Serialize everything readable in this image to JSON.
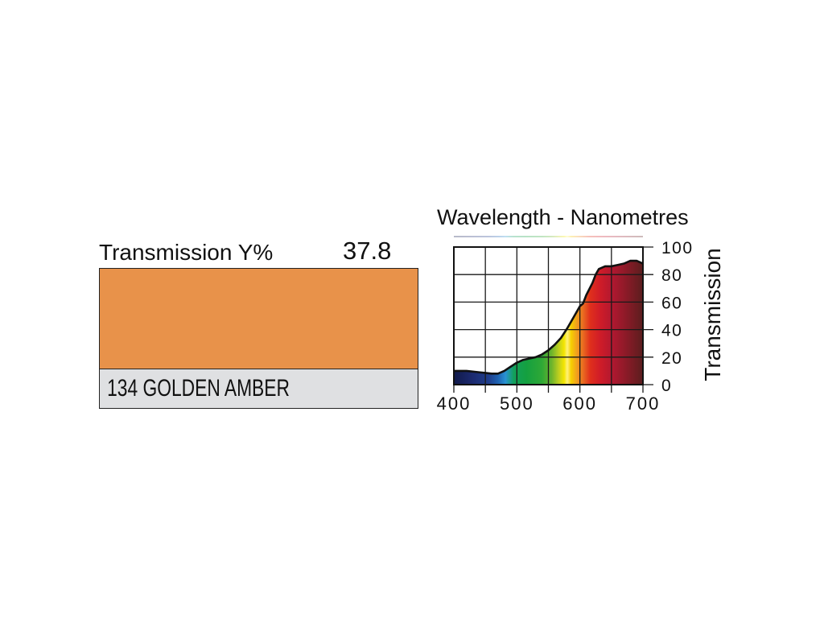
{
  "swatch": {
    "transmission_label": "Transmission Y%",
    "transmission_value": "37.8",
    "name": "134 GOLDEN AMBER",
    "color": "#E8924A",
    "name_background": "#DFE0E2"
  },
  "chart_data": {
    "type": "area",
    "xlabel": "Wavelength - Nanometres",
    "ylabel": "Transmission",
    "xlim": [
      400,
      700
    ],
    "ylim": [
      0,
      100
    ],
    "x_ticks": [
      400,
      500,
      600,
      700
    ],
    "y_ticks": [
      0,
      20,
      40,
      60,
      80,
      100
    ],
    "x_grid_step": 50,
    "grid": true,
    "y_axis_side": "right",
    "x": [
      400,
      410,
      420,
      430,
      440,
      450,
      460,
      470,
      480,
      490,
      500,
      510,
      520,
      530,
      540,
      550,
      560,
      570,
      580,
      590,
      600,
      605,
      610,
      620,
      625,
      630,
      640,
      650,
      660,
      670,
      680,
      690,
      700
    ],
    "series": [
      {
        "values": [
          10,
          10,
          10,
          9.5,
          9,
          8.5,
          8,
          8,
          10,
          13,
          16,
          18,
          19,
          20,
          22,
          25,
          29,
          34,
          41,
          49,
          57,
          59,
          65,
          74,
          80,
          84,
          86,
          86,
          87,
          88,
          90,
          90,
          88
        ]
      }
    ],
    "fill_gradient": [
      {
        "nm": 400,
        "color": "#111a4a"
      },
      {
        "nm": 430,
        "color": "#1c2a70"
      },
      {
        "nm": 455,
        "color": "#1f3d8c"
      },
      {
        "nm": 470,
        "color": "#1e62b2"
      },
      {
        "nm": 482,
        "color": "#2a92d2"
      },
      {
        "nm": 495,
        "color": "#12a05a"
      },
      {
        "nm": 515,
        "color": "#14a040"
      },
      {
        "nm": 540,
        "color": "#2fa836"
      },
      {
        "nm": 555,
        "color": "#6cb42c"
      },
      {
        "nm": 567,
        "color": "#c2d01e"
      },
      {
        "nm": 575,
        "color": "#f4e600"
      },
      {
        "nm": 580,
        "color": "#fff27a"
      },
      {
        "nm": 586,
        "color": "#f6cf00"
      },
      {
        "nm": 596,
        "color": "#f09c20"
      },
      {
        "nm": 606,
        "color": "#e86620"
      },
      {
        "nm": 616,
        "color": "#e0301c"
      },
      {
        "nm": 632,
        "color": "#d01c28"
      },
      {
        "nm": 652,
        "color": "#b01830"
      },
      {
        "nm": 672,
        "color": "#8e1a28"
      },
      {
        "nm": 700,
        "color": "#5a1e1e"
      }
    ]
  }
}
